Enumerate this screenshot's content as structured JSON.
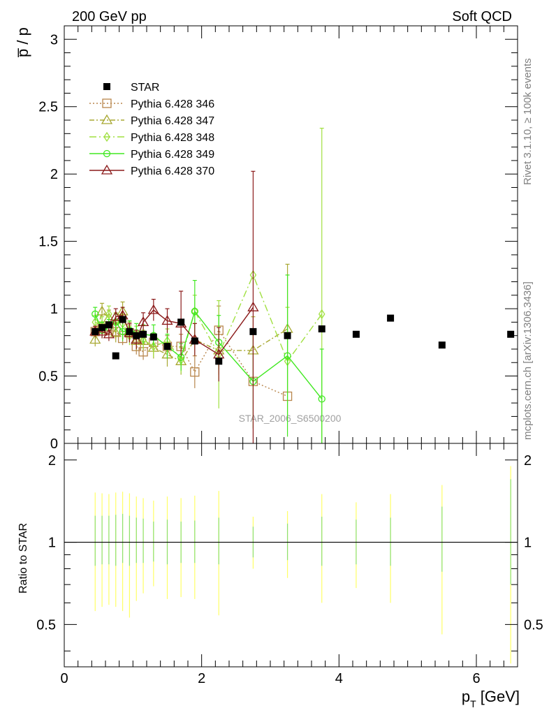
{
  "header": {
    "left_title": "200 GeV pp",
    "right_title": "Soft QCD"
  },
  "side_labels": {
    "rivet": "Rivet 3.1.10, ≥ 100k events",
    "mcplots": "mcplots.cern.ch [arXiv:1306.3436]"
  },
  "chart_data": {
    "type": "scatter",
    "title": "200 GeV pp",
    "subtitle": "Soft QCD",
    "watermark": "STAR_2006_S6500200",
    "xlabel": "p_T [GeV]",
    "ylabel": "p̅ / p",
    "ratio_ylabel": "Ratio to STAR",
    "xlim": [
      0,
      6.6
    ],
    "ylim": [
      0,
      3.1
    ],
    "ratio_ylim": [
      0.35,
      2.3
    ],
    "x_ticks": [
      0,
      2,
      4,
      6
    ],
    "y_ticks": [
      0,
      0.5,
      1,
      1.5,
      2,
      2.5,
      3
    ],
    "ratio_ticks": [
      0.5,
      1,
      2
    ],
    "legend": {
      "placement": "top-left",
      "entries": [
        "STAR",
        "Pythia 6.428 346",
        "Pythia 6.428 347",
        "Pythia 6.428 348",
        "Pythia 6.428 349",
        "Pythia 6.428 370"
      ]
    },
    "star": {
      "name": "STAR",
      "color": "#000000",
      "x": [
        0.45,
        0.55,
        0.65,
        0.75,
        0.85,
        0.95,
        1.05,
        1.15,
        1.3,
        1.5,
        1.7,
        1.9,
        2.25,
        2.75,
        3.25,
        3.75,
        4.25,
        4.75,
        5.5,
        6.5
      ],
      "y": [
        0.83,
        0.86,
        0.88,
        0.65,
        0.92,
        0.83,
        0.8,
        0.81,
        0.79,
        0.72,
        0.9,
        0.76,
        0.61,
        0.83,
        0.8,
        0.85,
        0.81,
        0.93,
        0.73,
        0.81
      ]
    },
    "series": [
      {
        "name": "Pythia 6.428 346",
        "color": "#b8864c",
        "dash": "2,3",
        "marker": "square",
        "x": [
          0.45,
          0.55,
          0.65,
          0.75,
          0.85,
          0.95,
          1.05,
          1.15,
          1.3,
          1.5,
          1.7,
          1.9,
          2.25,
          2.75,
          3.25
        ],
        "y": [
          0.83,
          0.86,
          0.84,
          0.83,
          0.78,
          0.82,
          0.72,
          0.68,
          0.75,
          0.72,
          0.72,
          0.53,
          0.84,
          0.46,
          0.35
        ],
        "err": [
          0.04,
          0.04,
          0.05,
          0.05,
          0.05,
          0.06,
          0.06,
          0.06,
          0.07,
          0.08,
          0.09,
          0.12,
          0.18,
          0.0,
          0.0
        ]
      },
      {
        "name": "Pythia 6.428 347",
        "color": "#a8a832",
        "dash": "7,3,2,3",
        "marker": "triangle",
        "x": [
          0.45,
          0.55,
          0.65,
          0.75,
          0.85,
          0.95,
          1.05,
          1.15,
          1.3,
          1.5,
          1.7,
          1.9,
          2.25,
          2.75,
          3.25
        ],
        "y": [
          0.77,
          0.98,
          0.93,
          0.82,
          0.98,
          0.83,
          0.76,
          0.76,
          0.71,
          0.66,
          0.61,
          0.77,
          0.69,
          0.69,
          0.85
        ],
        "err": [
          0.05,
          0.06,
          0.06,
          0.07,
          0.07,
          0.07,
          0.07,
          0.07,
          0.08,
          0.09,
          0.1,
          0.12,
          0.18,
          0.25,
          0.48
        ]
      },
      {
        "name": "Pythia 6.428 348",
        "color": "#a0e040",
        "dash": "10,4,2,4",
        "marker": "diamond",
        "x": [
          0.45,
          0.55,
          0.65,
          0.75,
          0.85,
          0.95,
          1.05,
          1.15,
          1.3,
          1.5,
          1.7,
          1.9,
          2.25,
          2.75,
          3.25,
          3.75
        ],
        "y": [
          0.9,
          0.88,
          0.96,
          0.9,
          0.89,
          0.8,
          0.8,
          0.77,
          0.72,
          0.76,
          0.62,
          0.98,
          0.66,
          1.25,
          0.61,
          0.96
        ],
        "err": [
          0.05,
          0.06,
          0.06,
          0.07,
          0.07,
          0.07,
          0.07,
          0.07,
          0.08,
          0.09,
          0.1,
          0.12,
          0.4,
          0.0,
          0.4,
          1.38
        ]
      },
      {
        "name": "Pythia 6.428 349",
        "color": "#40e820",
        "dash": "",
        "marker": "circle",
        "x": [
          0.45,
          0.55,
          0.65,
          0.75,
          0.85,
          0.95,
          1.05,
          1.15,
          1.3,
          1.5,
          1.7,
          1.9,
          2.25,
          2.75,
          3.25,
          3.75
        ],
        "y": [
          0.96,
          0.84,
          0.86,
          0.9,
          0.83,
          0.84,
          0.82,
          0.81,
          0.8,
          0.72,
          0.64,
          0.98,
          0.75,
          0.46,
          0.65,
          0.33
        ],
        "err": [
          0.05,
          0.06,
          0.06,
          0.06,
          0.07,
          0.07,
          0.07,
          0.07,
          0.08,
          0.09,
          0.1,
          0.23,
          0.2,
          0.35,
          0.6,
          0.37
        ]
      },
      {
        "name": "Pythia 6.428 370",
        "color": "#8b1a1a",
        "dash": "",
        "marker": "triangle",
        "x": [
          0.45,
          0.55,
          0.65,
          0.75,
          0.85,
          0.95,
          1.05,
          1.15,
          1.3,
          1.5,
          1.7,
          1.9,
          2.25,
          2.75
        ],
        "y": [
          0.83,
          0.83,
          0.81,
          0.94,
          0.95,
          0.82,
          0.77,
          0.9,
          0.99,
          0.91,
          0.89,
          0.77,
          0.66,
          1.01
        ],
        "err": [
          0.04,
          0.05,
          0.05,
          0.06,
          0.06,
          0.07,
          0.07,
          0.07,
          0.08,
          0.09,
          0.24,
          0.12,
          0.2,
          1.01
        ]
      }
    ],
    "ratio_bands": {
      "inner_color": "#8ee070",
      "outer_color": "#ffff66",
      "x": [
        0.45,
        0.55,
        0.65,
        0.75,
        0.85,
        0.95,
        1.05,
        1.15,
        1.3,
        1.5,
        1.7,
        1.9,
        2.25,
        2.75,
        3.25,
        3.75,
        4.25,
        4.75,
        5.5,
        6.5
      ],
      "inner": [
        [
          0.82,
          1.25
        ],
        [
          0.83,
          1.25
        ],
        [
          0.83,
          1.25
        ],
        [
          0.82,
          1.26
        ],
        [
          0.84,
          1.27
        ],
        [
          0.82,
          1.25
        ],
        [
          0.84,
          1.23
        ],
        [
          0.84,
          1.22
        ],
        [
          0.85,
          1.19
        ],
        [
          0.83,
          1.21
        ],
        [
          0.84,
          1.19
        ],
        [
          0.84,
          1.2
        ],
        [
          0.83,
          1.23
        ],
        [
          0.88,
          1.14
        ],
        [
          0.86,
          1.17
        ],
        [
          0.82,
          1.24
        ],
        [
          0.83,
          1.21
        ],
        [
          0.82,
          1.23
        ],
        [
          0.78,
          1.35
        ],
        [
          0.7,
          1.7
        ]
      ],
      "outer": [
        [
          0.56,
          1.52
        ],
        [
          0.58,
          1.51
        ],
        [
          0.59,
          1.5
        ],
        [
          0.58,
          1.52
        ],
        [
          0.56,
          1.53
        ],
        [
          0.53,
          1.51
        ],
        [
          0.61,
          1.47
        ],
        [
          0.65,
          1.45
        ],
        [
          0.69,
          1.42
        ],
        [
          0.62,
          1.47
        ],
        [
          0.63,
          1.45
        ],
        [
          0.62,
          1.48
        ],
        [
          0.54,
          1.54
        ],
        [
          0.8,
          1.24
        ],
        [
          0.74,
          1.3
        ],
        [
          0.6,
          1.5
        ],
        [
          0.68,
          1.4
        ],
        [
          0.6,
          1.5
        ],
        [
          0.46,
          1.62
        ],
        [
          0.36,
          1.9
        ]
      ]
    }
  }
}
